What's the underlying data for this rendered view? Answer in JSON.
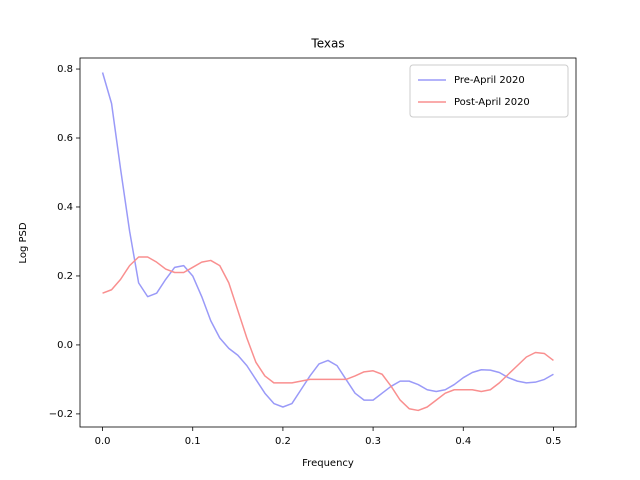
{
  "chart_data": {
    "type": "line",
    "title": "Texas",
    "x_label": "Frequency",
    "y_label": "Log PSD",
    "x": [
      0,
      0.01,
      0.02,
      0.03,
      0.04,
      0.05,
      0.06,
      0.07,
      0.08,
      0.09,
      0.1,
      0.11,
      0.12,
      0.13,
      0.14,
      0.15,
      0.16,
      0.17,
      0.18,
      0.19,
      0.2,
      0.21,
      0.22,
      0.23,
      0.24,
      0.25,
      0.26,
      0.27,
      0.28,
      0.29,
      0.3,
      0.31,
      0.32,
      0.33,
      0.34,
      0.35,
      0.36,
      0.37,
      0.38,
      0.39,
      0.4,
      0.41,
      0.42,
      0.43,
      0.44,
      0.45,
      0.46,
      0.47,
      0.48,
      0.49,
      0.5
    ],
    "series": [
      {
        "name": "Pre-April 2020",
        "color": "#9a9af8",
        "values": [
          0.79,
          0.7,
          0.51,
          0.33,
          0.18,
          0.14,
          0.15,
          0.19,
          0.225,
          0.23,
          0.2,
          0.14,
          0.07,
          0.02,
          -0.01,
          -0.03,
          -0.06,
          -0.1,
          -0.14,
          -0.17,
          -0.18,
          -0.17,
          -0.13,
          -0.09,
          -0.055,
          -0.045,
          -0.06,
          -0.1,
          -0.14,
          -0.16,
          -0.16,
          -0.14,
          -0.12,
          -0.105,
          -0.105,
          -0.115,
          -0.13,
          -0.135,
          -0.13,
          -0.115,
          -0.095,
          -0.08,
          -0.072,
          -0.073,
          -0.08,
          -0.095,
          -0.105,
          -0.11,
          -0.108,
          -0.1,
          -0.085
        ]
      },
      {
        "name": "Post-April 2020",
        "color": "#f98f8f",
        "values": [
          0.15,
          0.16,
          0.19,
          0.23,
          0.255,
          0.255,
          0.24,
          0.22,
          0.21,
          0.21,
          0.225,
          0.24,
          0.245,
          0.23,
          0.18,
          0.1,
          0.02,
          -0.05,
          -0.09,
          -0.11,
          -0.11,
          -0.11,
          -0.105,
          -0.1,
          -0.1,
          -0.1,
          -0.1,
          -0.1,
          -0.09,
          -0.078,
          -0.075,
          -0.085,
          -0.12,
          -0.16,
          -0.185,
          -0.19,
          -0.18,
          -0.16,
          -0.14,
          -0.13,
          -0.13,
          -0.13,
          -0.135,
          -0.13,
          -0.11,
          -0.085,
          -0.06,
          -0.035,
          -0.022,
          -0.025,
          -0.045
        ]
      }
    ],
    "xlim": [
      -0.025,
      0.525
    ],
    "ylim": [
      -0.238,
      0.832
    ],
    "xticks": [
      {
        "value": 0,
        "label": "0.0"
      },
      0.1,
      0.2,
      0.3,
      0.4,
      0.5
    ],
    "yticks": [
      {
        "value": -0.2,
        "label": "−0.2"
      },
      {
        "value": 0,
        "label": "0.0"
      },
      0.2,
      0.4,
      0.6,
      0.8
    ],
    "legend": "upper right"
  }
}
